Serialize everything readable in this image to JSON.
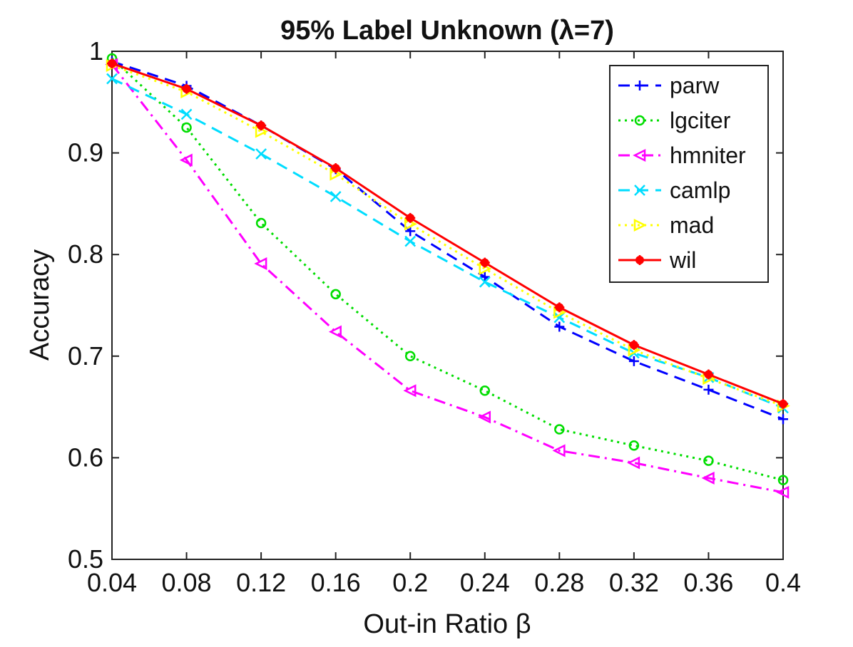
{
  "chart_data": {
    "type": "line",
    "title": "95% Label Unknown (λ=7)",
    "xlabel": "Out-in Ratio β",
    "ylabel": "Accuracy",
    "x": [
      0.04,
      0.08,
      0.12,
      0.16,
      0.2,
      0.24,
      0.28,
      0.32,
      0.36,
      0.4
    ],
    "x_tick_labels": [
      "0.04",
      "0.08",
      "0.12",
      "0.16",
      "0.2",
      "0.24",
      "0.28",
      "0.32",
      "0.36",
      "0.4"
    ],
    "y_tick_labels": [
      "0.5",
      "0.6",
      "0.7",
      "0.8",
      "0.9",
      "1"
    ],
    "xlim": [
      0.04,
      0.4
    ],
    "ylim": [
      0.5,
      1.0
    ],
    "grid": false,
    "legend_position": "top-right",
    "series": [
      {
        "name": "parw",
        "color": "#0000ff",
        "dash": "dashed",
        "marker": "plus",
        "values": [
          0.99,
          0.966,
          0.927,
          0.884,
          0.823,
          0.778,
          0.729,
          0.695,
          0.667,
          0.638
        ]
      },
      {
        "name": "lgciter",
        "color": "#00dd00",
        "dash": "dotted",
        "marker": "circle",
        "values": [
          0.993,
          0.925,
          0.831,
          0.761,
          0.7,
          0.666,
          0.628,
          0.612,
          0.597,
          0.578
        ]
      },
      {
        "name": "hmniter",
        "color": "#ff00ff",
        "dash": "dashdot",
        "marker": "triangle-left",
        "values": [
          0.987,
          0.893,
          0.791,
          0.724,
          0.666,
          0.64,
          0.607,
          0.595,
          0.58,
          0.566
        ]
      },
      {
        "name": "camlp",
        "color": "#00ddff",
        "dash": "dashed",
        "marker": "x",
        "values": [
          0.973,
          0.938,
          0.899,
          0.857,
          0.813,
          0.773,
          0.738,
          0.703,
          0.679,
          0.649
        ]
      },
      {
        "name": "mad",
        "color": "#ffff00",
        "dash": "dotted",
        "marker": "triangle-right",
        "values": [
          0.986,
          0.96,
          0.921,
          0.879,
          0.83,
          0.786,
          0.743,
          0.706,
          0.678,
          0.651
        ]
      },
      {
        "name": "wil",
        "color": "#ff0000",
        "dash": "solid",
        "marker": "star",
        "values": [
          0.988,
          0.963,
          0.927,
          0.885,
          0.836,
          0.792,
          0.748,
          0.711,
          0.682,
          0.653
        ]
      }
    ]
  }
}
